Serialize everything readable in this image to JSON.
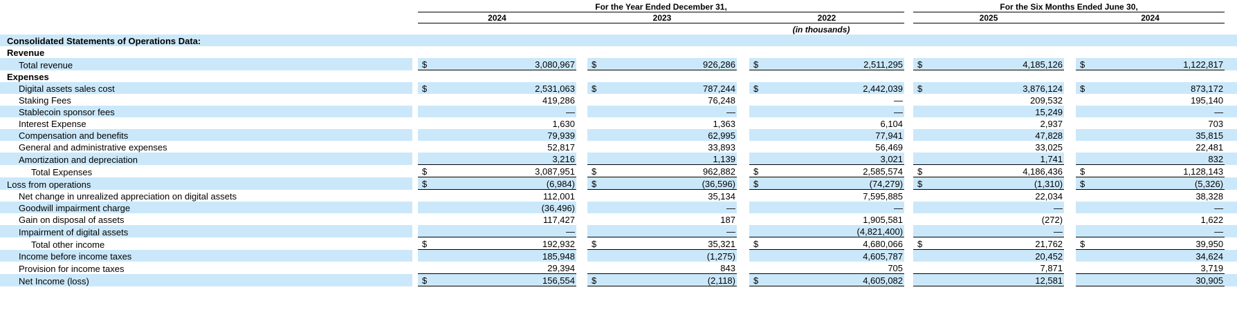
{
  "table": {
    "header": {
      "group1": "For the Year Ended December 31,",
      "group2": "For the Six Months Ended June 30,",
      "years": [
        "2024",
        "2023",
        "2022",
        "2025",
        "2024"
      ],
      "units_note": "(in thousands)"
    },
    "highlight_color": "#CBE8FA",
    "rule_color": "#000000",
    "rows": [
      {
        "name": "section-title",
        "label": "Consolidated Statements of Operations Data:",
        "indent": 0,
        "bold": true,
        "hl": true,
        "rule": "",
        "cells": null
      },
      {
        "name": "revenue-heading",
        "label": "Revenue",
        "indent": 0,
        "bold": true,
        "hl": false,
        "rule": "",
        "cells": null
      },
      {
        "name": "total-revenue",
        "label": "Total revenue",
        "indent": 1,
        "bold": false,
        "hl": true,
        "rule": "b",
        "cells": [
          {
            "d": "$",
            "v": "3,080,967"
          },
          {
            "d": "$",
            "v": "926,286"
          },
          {
            "d": "$",
            "v": "2,511,295"
          },
          {
            "d": "$",
            "v": "4,185,126"
          },
          {
            "d": "$",
            "v": "1,122,817"
          }
        ]
      },
      {
        "name": "expenses-heading",
        "label": "Expenses",
        "indent": 0,
        "bold": true,
        "hl": false,
        "rule": "",
        "cells": null
      },
      {
        "name": "digital-assets-sales-cost",
        "label": "Digital assets sales cost",
        "indent": 1,
        "bold": false,
        "hl": true,
        "rule": "",
        "cells": [
          {
            "d": "$",
            "v": "2,531,063"
          },
          {
            "d": "$",
            "v": "787,244"
          },
          {
            "d": "$",
            "v": "2,442,039"
          },
          {
            "d": "$",
            "v": "3,876,124"
          },
          {
            "d": "$",
            "v": "873,172"
          }
        ]
      },
      {
        "name": "staking-fees",
        "label": "Staking Fees",
        "indent": 1,
        "bold": false,
        "hl": false,
        "rule": "",
        "cells": [
          {
            "d": "",
            "v": "419,286"
          },
          {
            "d": "",
            "v": "76,248"
          },
          {
            "d": "",
            "v": "—"
          },
          {
            "d": "",
            "v": "209,532"
          },
          {
            "d": "",
            "v": "195,140"
          }
        ]
      },
      {
        "name": "stablecoin-sponsor-fees",
        "label": "Stablecoin sponsor fees",
        "indent": 1,
        "bold": false,
        "hl": true,
        "rule": "",
        "cells": [
          {
            "d": "",
            "v": "—"
          },
          {
            "d": "",
            "v": "—"
          },
          {
            "d": "",
            "v": "—"
          },
          {
            "d": "",
            "v": "15,249"
          },
          {
            "d": "",
            "v": "—"
          }
        ]
      },
      {
        "name": "interest-expense",
        "label": "Interest Expense",
        "indent": 1,
        "bold": false,
        "hl": false,
        "rule": "",
        "cells": [
          {
            "d": "",
            "v": "1,630"
          },
          {
            "d": "",
            "v": "1,363"
          },
          {
            "d": "",
            "v": "6,104"
          },
          {
            "d": "",
            "v": "2,937"
          },
          {
            "d": "",
            "v": "703"
          }
        ]
      },
      {
        "name": "compensation-and-benefits",
        "label": "Compensation and benefits",
        "indent": 1,
        "bold": false,
        "hl": true,
        "rule": "",
        "cells": [
          {
            "d": "",
            "v": "79,939"
          },
          {
            "d": "",
            "v": "62,995"
          },
          {
            "d": "",
            "v": "77,941"
          },
          {
            "d": "",
            "v": "47,828"
          },
          {
            "d": "",
            "v": "35,815"
          }
        ]
      },
      {
        "name": "general-and-administrative-expenses",
        "label": "General and administrative expenses",
        "indent": 1,
        "bold": false,
        "hl": false,
        "rule": "",
        "cells": [
          {
            "d": "",
            "v": "52,817"
          },
          {
            "d": "",
            "v": "33,893"
          },
          {
            "d": "",
            "v": "56,469"
          },
          {
            "d": "",
            "v": "33,025"
          },
          {
            "d": "",
            "v": "22,481"
          }
        ]
      },
      {
        "name": "amortization-and-depreciation",
        "label": "Amortization and depreciation",
        "indent": 1,
        "bold": false,
        "hl": true,
        "rule": "",
        "cells": [
          {
            "d": "",
            "v": "3,216"
          },
          {
            "d": "",
            "v": "1,139"
          },
          {
            "d": "",
            "v": "3,021"
          },
          {
            "d": "",
            "v": "1,741"
          },
          {
            "d": "",
            "v": "832"
          }
        ]
      },
      {
        "name": "total-expenses",
        "label": "Total Expenses",
        "indent": 2,
        "bold": false,
        "hl": false,
        "rule": "tb",
        "cells": [
          {
            "d": "$",
            "v": "3,087,951"
          },
          {
            "d": "$",
            "v": "962,882"
          },
          {
            "d": "$",
            "v": "2,585,574"
          },
          {
            "d": "$",
            "v": "4,186,436"
          },
          {
            "d": "$",
            "v": "1,128,143"
          }
        ]
      },
      {
        "name": "loss-from-operations",
        "label": "Loss from operations",
        "indent": 0,
        "bold": false,
        "hl": true,
        "rule": "b",
        "cells": [
          {
            "d": "$",
            "v": "(6,984)"
          },
          {
            "d": "$",
            "v": "(36,596)"
          },
          {
            "d": "$",
            "v": "(74,279)"
          },
          {
            "d": "$",
            "v": "(1,310)"
          },
          {
            "d": "$",
            "v": "(5,326)"
          }
        ]
      },
      {
        "name": "net-change-unrealized-appreciation",
        "label": "Net change in unrealized appreciation on digital assets",
        "indent": 1,
        "bold": false,
        "hl": false,
        "rule": "",
        "cells": [
          {
            "d": "",
            "v": "112,001"
          },
          {
            "d": "",
            "v": "35,134"
          },
          {
            "d": "",
            "v": "7,595,885"
          },
          {
            "d": "",
            "v": "22,034"
          },
          {
            "d": "",
            "v": "38,328"
          }
        ]
      },
      {
        "name": "goodwill-impairment-charge",
        "label": "Goodwill impairment charge",
        "indent": 1,
        "bold": false,
        "hl": true,
        "rule": "",
        "cells": [
          {
            "d": "",
            "v": "(36,496)"
          },
          {
            "d": "",
            "v": "—"
          },
          {
            "d": "",
            "v": "—"
          },
          {
            "d": "",
            "v": "—"
          },
          {
            "d": "",
            "v": "—"
          }
        ]
      },
      {
        "name": "gain-on-disposal-of-assets",
        "label": "Gain on disposal of assets",
        "indent": 1,
        "bold": false,
        "hl": false,
        "rule": "",
        "cells": [
          {
            "d": "",
            "v": "117,427"
          },
          {
            "d": "",
            "v": "187"
          },
          {
            "d": "",
            "v": "1,905,581"
          },
          {
            "d": "",
            "v": "(272)"
          },
          {
            "d": "",
            "v": "1,622"
          }
        ]
      },
      {
        "name": "impairment-of-digital-assets",
        "label": "Impairment of digital assets",
        "indent": 1,
        "bold": false,
        "hl": true,
        "rule": "",
        "cells": [
          {
            "d": "",
            "v": "—"
          },
          {
            "d": "",
            "v": "—"
          },
          {
            "d": "",
            "v": "(4,821,400)"
          },
          {
            "d": "",
            "v": "—"
          },
          {
            "d": "",
            "v": "—"
          }
        ]
      },
      {
        "name": "total-other-income",
        "label": "Total other income",
        "indent": 2,
        "bold": false,
        "hl": false,
        "rule": "tb",
        "cells": [
          {
            "d": "$",
            "v": "192,932"
          },
          {
            "d": "$",
            "v": "35,321"
          },
          {
            "d": "$",
            "v": "4,680,066"
          },
          {
            "d": "$",
            "v": "21,762"
          },
          {
            "d": "$",
            "v": "39,950"
          }
        ]
      },
      {
        "name": "income-before-income-taxes",
        "label": "Income before income taxes",
        "indent": 1,
        "bold": false,
        "hl": true,
        "rule": "",
        "cells": [
          {
            "d": "",
            "v": "185,948"
          },
          {
            "d": "",
            "v": "(1,275)"
          },
          {
            "d": "",
            "v": "4,605,787"
          },
          {
            "d": "",
            "v": "20,452"
          },
          {
            "d": "",
            "v": "34,624"
          }
        ]
      },
      {
        "name": "provision-for-income-taxes",
        "label": "Provision for income taxes",
        "indent": 1,
        "bold": false,
        "hl": false,
        "rule": "b",
        "cells": [
          {
            "d": "",
            "v": "29,394"
          },
          {
            "d": "",
            "v": "843"
          },
          {
            "d": "",
            "v": "705"
          },
          {
            "d": "",
            "v": "7,871"
          },
          {
            "d": "",
            "v": "3,719"
          }
        ]
      },
      {
        "name": "net-income-loss",
        "label": "Net Income (loss)",
        "indent": 1,
        "bold": false,
        "hl": true,
        "rule": "b",
        "cells": [
          {
            "d": "$",
            "v": "156,554"
          },
          {
            "d": "$",
            "v": "(2,118)"
          },
          {
            "d": "$",
            "v": "4,605,082"
          },
          {
            "d": "",
            "v": "12,581"
          },
          {
            "d": "",
            "v": "30,905"
          }
        ]
      }
    ]
  }
}
